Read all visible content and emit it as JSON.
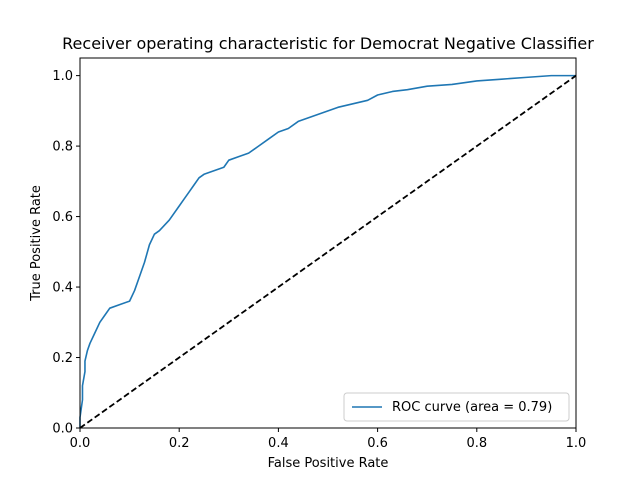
{
  "chart_data": {
    "type": "line",
    "title": "Receiver operating characteristic for Democrat Negative Classifier",
    "xlabel": "False Positive Rate",
    "ylabel": "True Positive Rate",
    "xlim": [
      0.0,
      1.0
    ],
    "ylim": [
      0.0,
      1.05
    ],
    "x_ticks": [
      "0.0",
      "0.2",
      "0.4",
      "0.6",
      "0.8",
      "1.0"
    ],
    "y_ticks": [
      "0.0",
      "0.2",
      "0.4",
      "0.6",
      "0.8",
      "1.0"
    ],
    "x_tick_values": [
      0.0,
      0.2,
      0.4,
      0.6,
      0.8,
      1.0
    ],
    "y_tick_values": [
      0.0,
      0.2,
      0.4,
      0.6,
      0.8,
      1.0
    ],
    "grid": false,
    "legend_position": "lower-right",
    "series": [
      {
        "name": "ROC curve (area = 0.79)",
        "color": "#1f77b4",
        "style": "solid",
        "x": [
          0.0,
          0.0,
          0.005,
          0.005,
          0.01,
          0.01,
          0.015,
          0.02,
          0.03,
          0.04,
          0.05,
          0.06,
          0.08,
          0.1,
          0.11,
          0.12,
          0.13,
          0.14,
          0.15,
          0.16,
          0.18,
          0.2,
          0.21,
          0.22,
          0.23,
          0.24,
          0.25,
          0.27,
          0.29,
          0.3,
          0.32,
          0.34,
          0.36,
          0.38,
          0.4,
          0.42,
          0.44,
          0.46,
          0.48,
          0.5,
          0.52,
          0.55,
          0.58,
          0.6,
          0.63,
          0.66,
          0.7,
          0.75,
          0.8,
          0.85,
          0.9,
          0.95,
          1.0
        ],
        "y": [
          0.0,
          0.03,
          0.08,
          0.12,
          0.16,
          0.19,
          0.22,
          0.24,
          0.27,
          0.3,
          0.32,
          0.34,
          0.35,
          0.36,
          0.39,
          0.43,
          0.47,
          0.52,
          0.55,
          0.56,
          0.59,
          0.63,
          0.65,
          0.67,
          0.69,
          0.71,
          0.72,
          0.73,
          0.74,
          0.76,
          0.77,
          0.78,
          0.8,
          0.82,
          0.84,
          0.85,
          0.87,
          0.88,
          0.89,
          0.9,
          0.91,
          0.92,
          0.93,
          0.945,
          0.955,
          0.96,
          0.97,
          0.975,
          0.985,
          0.99,
          0.995,
          1.0,
          1.0
        ]
      },
      {
        "color": "#000000",
        "style": "dashed",
        "x": [
          0.0,
          1.0
        ],
        "y": [
          0.0,
          1.0
        ]
      }
    ]
  }
}
